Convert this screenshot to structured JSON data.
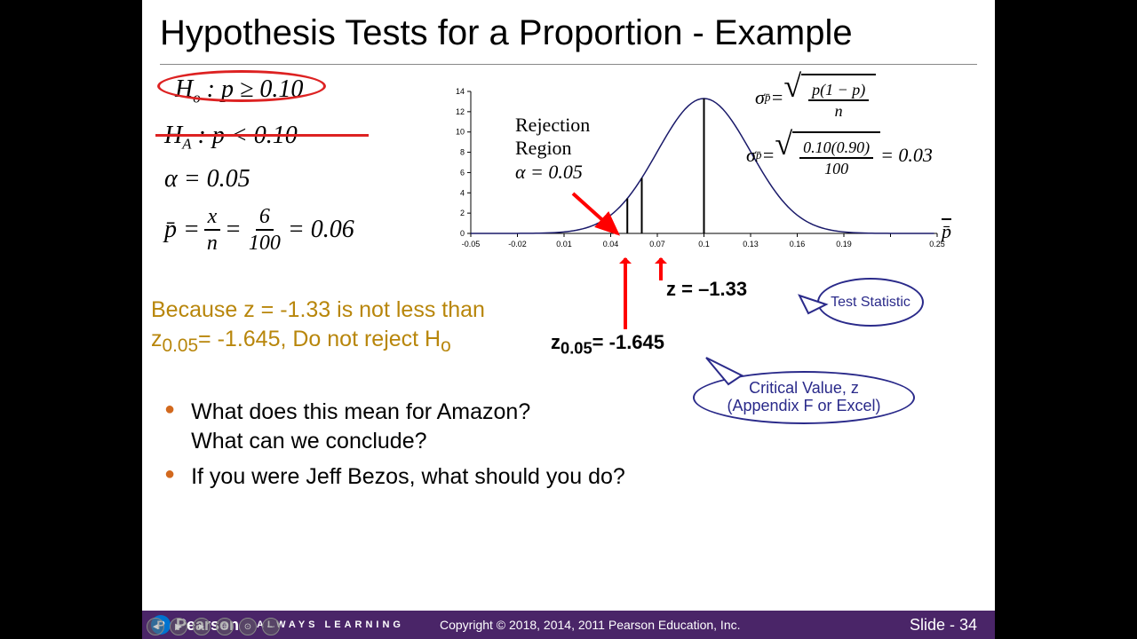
{
  "title": "Hypothesis Tests for a Proportion - Example",
  "h0": "H",
  "h0_sub": "o",
  "h0_rest": " : p ≥ 0.10",
  "ha": "H",
  "ha_sub": "A",
  "ha_rest": " : p < 0.10",
  "alpha": "α = 0.05",
  "pbar_sym": "p̄ = ",
  "pbar_x": "x",
  "pbar_n": "n",
  "pbar_eq": " = ",
  "pbar_6": "6",
  "pbar_100": "100",
  "pbar_result": " = 0.06",
  "conclusion1": "Because z = -1.33 is not less than",
  "conclusion2": "z",
  "conclusion2_sub": "0.05",
  "conclusion2_rest": "= -1.645, Do not reject H",
  "conclusion2_sub2": "o",
  "rej1": "Rejection",
  "rej2": "Region",
  "rej3": "α = 0.05",
  "sigma_sym": "σ",
  "sigma_sub": "p̄",
  "sigma_eq": " = ",
  "sigma_num1": "p(1 − p)",
  "sigma_den1": "n",
  "sigma_num2": "0.10(0.90)",
  "sigma_den2": "100",
  "sigma_result": " = 0.03",
  "pbar_label": "p̄",
  "z_crit": "z",
  "z_crit_sub": "0.05",
  "z_crit_rest": "= -1.645",
  "z_stat": "z = –1.33",
  "callout1": "Test Statistic",
  "callout2a": "Critical Value, z",
  "callout2b": "(Appendix F or Excel)",
  "bullet1a": "What does this mean for Amazon?",
  "bullet1b": "What can we conclude?",
  "bullet2": "If you were Jeff Bezos, what should you do?",
  "pearson": "Pearson",
  "always": "ALWAYS LEARNING",
  "copyright": "Copyright © 2018, 2014, 2011 Pearson Education, Inc.",
  "slide_num": "Slide - 34",
  "chart": {
    "x_ticks": [
      "-0.05",
      "-0.02",
      "0.01",
      "0.04",
      "0.07",
      "0.1",
      "0.13",
      "0.16",
      "0.19",
      "",
      "0.25"
    ],
    "y_ticks": [
      "0",
      "2",
      "4",
      "6",
      "8",
      "10",
      "12",
      "14"
    ],
    "curve_color": "#1a1a6a",
    "mean": 0.1,
    "sd": 0.03,
    "v1": 0.0507,
    "v2": 0.06
  }
}
